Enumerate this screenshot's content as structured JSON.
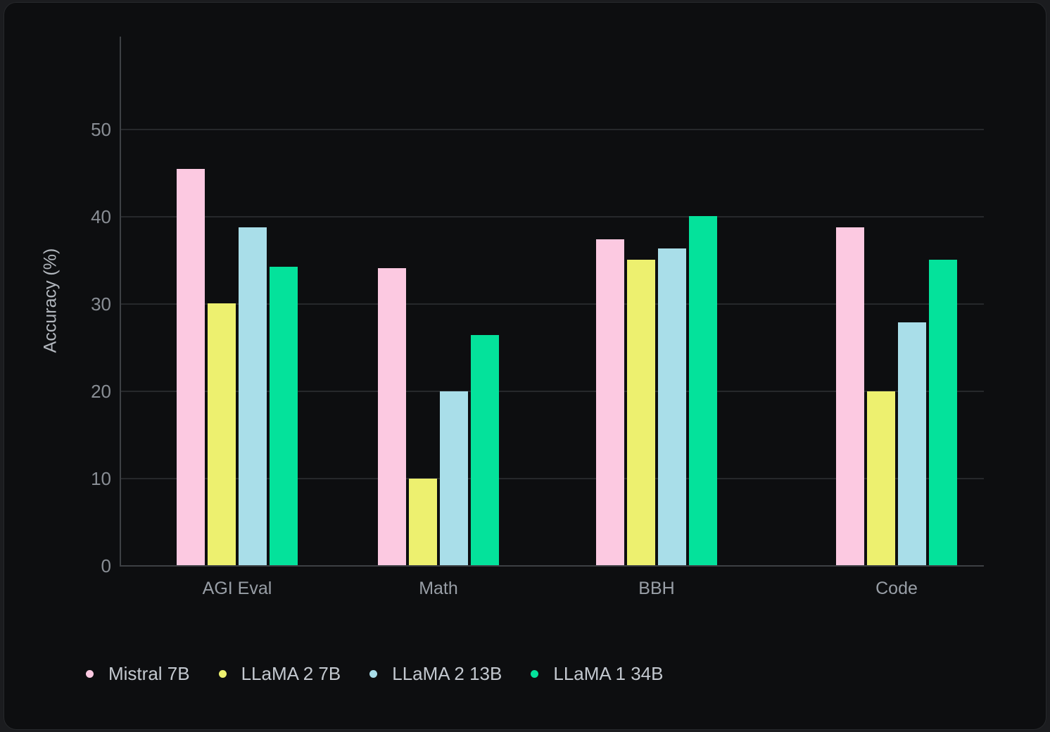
{
  "chart_data": {
    "type": "bar",
    "title": "",
    "ylabel": "Accuracy (%)",
    "xlabel": "",
    "categories": [
      "AGI Eval",
      "Math",
      "BBH",
      "Code"
    ],
    "series": [
      {
        "name": "Mistral 7B",
        "color": "#fcc9e1",
        "values": [
          45.5,
          34.2,
          37.5,
          38.8
        ]
      },
      {
        "name": "LLaMA 2 7B",
        "color": "#edf06f",
        "values": [
          30.1,
          10.1,
          35.1,
          20.1
        ]
      },
      {
        "name": "LLaMA 2 13B",
        "color": "#a9dee9",
        "values": [
          38.8,
          20.1,
          36.4,
          28.0
        ]
      },
      {
        "name": "LLaMA 1 34B",
        "color": "#04e29b",
        "values": [
          34.3,
          26.5,
          40.1,
          35.1
        ]
      }
    ],
    "yticks": [
      0,
      10,
      20,
      30,
      40,
      50
    ],
    "ylim": [
      0,
      60
    ],
    "grid": true,
    "legend_position": "bottom",
    "background_color": "#0d0e10",
    "gridline_color": "#26282b",
    "axis_color": "#3d4044"
  }
}
